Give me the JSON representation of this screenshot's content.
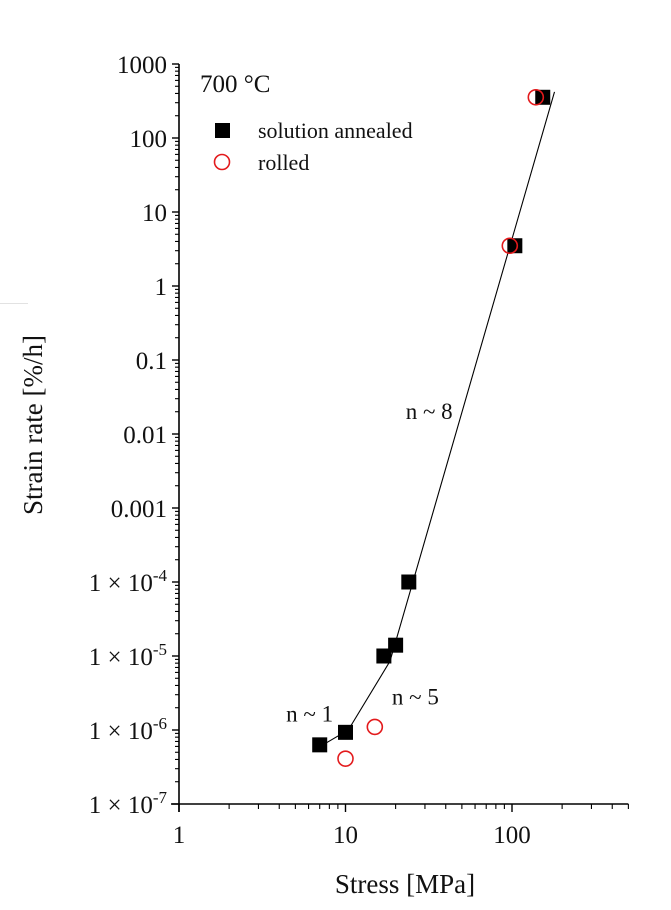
{
  "chart_data": {
    "type": "scatter",
    "title": "",
    "annotation_title": "700 °C",
    "xlabel": "Stress [MPa]",
    "ylabel": "Strain rate [%/h]",
    "xscale": "log",
    "yscale": "log",
    "xlim": [
      1,
      500
    ],
    "ylim": [
      1e-07,
      1000
    ],
    "grid": false,
    "legend_position": "upper left",
    "x_ticks": [
      1,
      10,
      100
    ],
    "x_tick_labels": [
      "1",
      "10",
      "100"
    ],
    "y_ticks": [
      1000,
      100,
      10,
      1,
      0.1,
      0.01,
      0.001,
      0.0001,
      1e-05,
      1e-06,
      1e-07
    ],
    "y_tick_labels": [
      {
        "base": "1000"
      },
      {
        "base": "100"
      },
      {
        "base": "10"
      },
      {
        "base": "1"
      },
      {
        "base": "0.1"
      },
      {
        "base": "0.01"
      },
      {
        "base": "0.001"
      },
      {
        "base": "1 × 10",
        "exp": "-4"
      },
      {
        "base": "1 × 10",
        "exp": "-5"
      },
      {
        "base": "1 × 10",
        "exp": "-6"
      },
      {
        "base": "1 × 10",
        "exp": "-7"
      }
    ],
    "series": [
      {
        "name": "solution annealed",
        "marker": "filled-square",
        "color": "#000000",
        "points": [
          {
            "x": 7,
            "y": 6.3e-07
          },
          {
            "x": 10,
            "y": 9.3e-07
          },
          {
            "x": 17,
            "y": 1e-05
          },
          {
            "x": 20,
            "y": 1.4e-05
          },
          {
            "x": 24,
            "y": 0.0001
          },
          {
            "x": 104,
            "y": 3.5
          },
          {
            "x": 153,
            "y": 355
          }
        ]
      },
      {
        "name": "rolled",
        "marker": "open-circle",
        "color": "#e31a1c",
        "points": [
          {
            "x": 10,
            "y": 4.1e-07
          },
          {
            "x": 15,
            "y": 1.1e-06
          },
          {
            "x": 97,
            "y": 3.5
          },
          {
            "x": 139,
            "y": 355
          }
        ]
      }
    ],
    "fit_line": {
      "color": "#000000",
      "points": [
        {
          "x": 7.5,
          "y": 6.5e-07
        },
        {
          "x": 10.4,
          "y": 1e-06
        },
        {
          "x": 18.5,
          "y": 8.5e-06
        },
        {
          "x": 180,
          "y": 420
        }
      ]
    },
    "annotations": [
      {
        "text": "n ~ 1",
        "x": 4.4,
        "y": 1.3e-06
      },
      {
        "text": "n ~ 5",
        "x": 19,
        "y": 2.2e-06
      },
      {
        "text": "n ~ 8",
        "x": 23,
        "y": 0.016
      }
    ]
  }
}
